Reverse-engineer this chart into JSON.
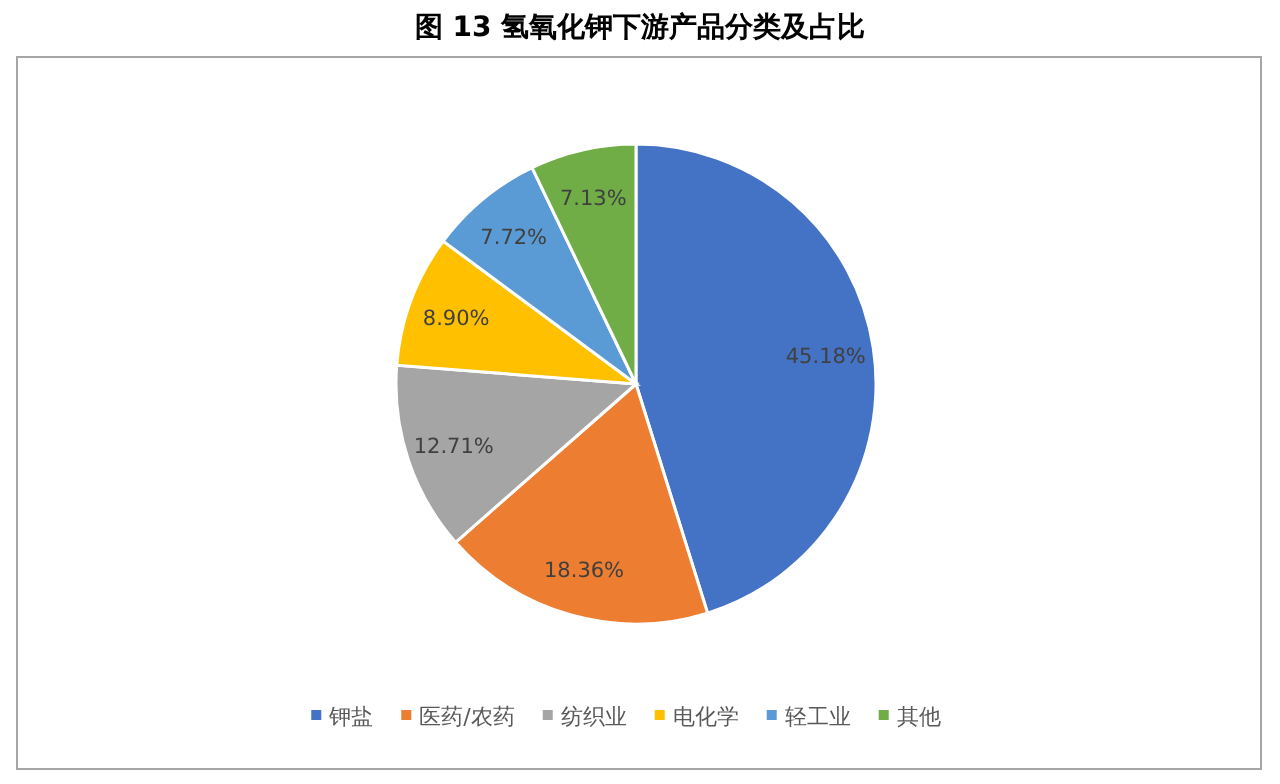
{
  "chart_data": {
    "type": "pie",
    "title": "图 13  氢氧化钾下游产品分类及占比",
    "categories": [
      "钾盐",
      "医药/农药",
      "纺织业",
      "电化学",
      "轻工业",
      "其他"
    ],
    "values": [
      45.18,
      18.36,
      12.71,
      8.9,
      7.72,
      7.13
    ],
    "value_labels": [
      "45.18%",
      "18.36%",
      "12.71%",
      "8.90%",
      "7.72%",
      "7.13%"
    ],
    "colors": [
      "#4472c4",
      "#ed7d31",
      "#a5a5a5",
      "#ffc000",
      "#5b9bd5",
      "#70ad47"
    ],
    "legend": "bottom"
  }
}
